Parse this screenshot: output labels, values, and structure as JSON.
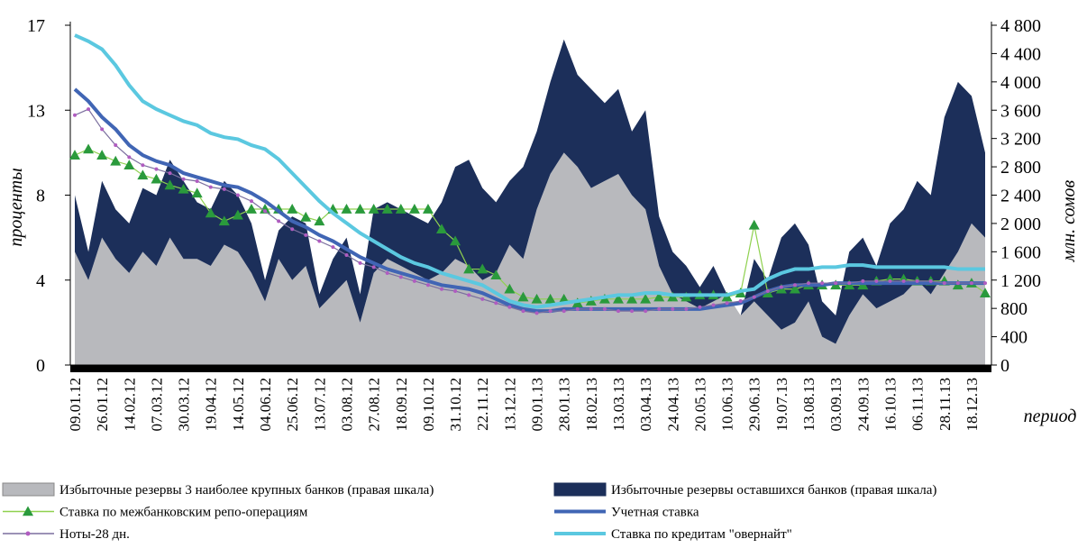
{
  "chart_data": {
    "type": "combo",
    "y_label": "проценты",
    "y2_label": "млн. сомов",
    "x_label": "период",
    "categories": [
      "09.01.12",
      null,
      "26.01.12",
      null,
      "14.02.12",
      null,
      "07.03.12",
      null,
      "30.03.12",
      null,
      "19.04.12",
      null,
      "14.05.12",
      null,
      "04.06.12",
      null,
      "25.06.12",
      null,
      "13.07.12",
      null,
      "03.08.12",
      null,
      "27.08.12",
      null,
      "18.09.12",
      null,
      "09.10.12",
      null,
      "31.10.12",
      null,
      "22.11.12",
      null,
      "13.12.12",
      null,
      "09.01.13",
      null,
      "28.01.13",
      null,
      "18.02.13",
      null,
      "13.03.13",
      null,
      "03.04.13",
      null,
      "24.04.13",
      null,
      "20.05.13",
      null,
      "10.06.13",
      null,
      "29.06.13",
      null,
      "19.07.13",
      null,
      "13.08.13",
      null,
      "03.09.13",
      null,
      "24.09.13",
      null,
      "16.10.13",
      null,
      "06.11.13",
      null,
      "28.11.13",
      null,
      "18.12.13",
      null
    ],
    "ylim": [
      0,
      17
    ],
    "yticks": [
      0,
      {
        "value": 4.25,
        "label": "4"
      },
      {
        "value": 8.5,
        "label": "8"
      },
      {
        "value": 12.75,
        "label": "13"
      },
      17
    ],
    "y2lim": [
      0,
      4800
    ],
    "y2ticks": [
      0,
      400,
      800,
      {
        "value": 1200,
        "label": "1 200"
      },
      {
        "value": 1600,
        "label": "1 600"
      },
      {
        "value": 2000,
        "label": "2 000"
      },
      {
        "value": 2400,
        "label": "2 400"
      },
      {
        "value": 2800,
        "label": "2 800"
      },
      {
        "value": 3200,
        "label": "3 200"
      },
      {
        "value": 3600,
        "label": "3 600"
      },
      {
        "value": 4000,
        "label": "4 000"
      },
      {
        "value": 4400,
        "label": "4 400"
      },
      {
        "value": 4800,
        "label": "4 800"
      }
    ],
    "series": [
      {
        "name": "Избыточные резервы 3 наиболее крупных банков (правая шкала)",
        "type": "area",
        "axis": "y2",
        "color": "#b8b9bd",
        "values": [
          1600,
          1200,
          1800,
          1500,
          1300,
          1600,
          1400,
          1800,
          1500,
          1500,
          1400,
          1700,
          1600,
          1300,
          900,
          1500,
          1200,
          1400,
          800,
          1000,
          1200,
          600,
          1300,
          1500,
          1400,
          1300,
          1200,
          1300,
          1500,
          1400,
          1200,
          1300,
          1700,
          1500,
          2200,
          2700,
          3000,
          2800,
          2500,
          2600,
          2700,
          2400,
          2200,
          1400,
          1000,
          900,
          800,
          900,
          1000,
          700,
          900,
          700,
          500,
          600,
          900,
          400,
          300,
          700,
          1000,
          800,
          900,
          1000,
          1200,
          1000,
          1300,
          1600,
          2000,
          1800
        ]
      },
      {
        "name": "Избыточные резервы оставшихся банков (правая шкала)",
        "type": "area",
        "stacked": true,
        "axis": "y2",
        "color": "#1c2f5a",
        "values": [
          800,
          400,
          800,
          700,
          700,
          900,
          1000,
          1100,
          1100,
          800,
          800,
          900,
          800,
          700,
          300,
          400,
          900,
          600,
          200,
          500,
          600,
          400,
          900,
          800,
          800,
          800,
          800,
          1000,
          1300,
          1500,
          1300,
          1000,
          900,
          1300,
          1100,
          1300,
          1600,
          1300,
          1400,
          1100,
          1200,
          900,
          1400,
          700,
          600,
          500,
          300,
          500,
          0,
          0,
          600,
          500,
          1300,
          1400,
          800,
          500,
          400,
          900,
          800,
          600,
          1100,
          1200,
          1400,
          1400,
          2200,
          2400,
          1800,
          1200
        ]
      },
      {
        "name": "Ставка по межбанковским репо-операциям",
        "type": "line",
        "marker": "triangle",
        "color": "#2a9a3c",
        "line_color": "#8fd14f",
        "values": [
          10.5,
          10.8,
          10.5,
          10.2,
          10,
          9.5,
          9.3,
          9,
          8.8,
          8.6,
          7.6,
          7.2,
          7.5,
          7.8,
          7.8,
          7.8,
          7.8,
          7.4,
          7.2,
          7.8,
          7.8,
          7.8,
          7.8,
          7.8,
          7.8,
          7.8,
          7.8,
          6.8,
          6.2,
          4.8,
          4.8,
          4.5,
          3.8,
          3.4,
          3.3,
          3.3,
          3.3,
          3.1,
          3.2,
          3.3,
          3.3,
          3.3,
          3.3,
          3.4,
          3.4,
          3.4,
          3.5,
          3.5,
          3.4,
          3.6,
          7,
          3.6,
          3.8,
          3.8,
          4,
          4,
          4,
          4,
          4,
          4.2,
          4.3,
          4.3,
          4.2,
          4.2,
          4.2,
          4,
          4.1,
          3.6
        ]
      },
      {
        "name": "Учетная ставка",
        "type": "line",
        "color": "#4065b4",
        "values": [
          13.8,
          13.2,
          12.4,
          11.8,
          11,
          10.5,
          10.2,
          10,
          9.6,
          9.4,
          9.2,
          9,
          8.9,
          8.6,
          8.2,
          7.7,
          7.2,
          6.9,
          6.5,
          6.2,
          5.8,
          5.4,
          5.1,
          4.8,
          4.6,
          4.4,
          4.2,
          4,
          3.9,
          3.8,
          3.6,
          3.3,
          3,
          2.8,
          2.7,
          2.7,
          2.8,
          2.8,
          2.8,
          2.8,
          2.8,
          2.8,
          2.8,
          2.8,
          2.8,
          2.8,
          2.8,
          2.9,
          3,
          3.1,
          3.4,
          3.7,
          3.9,
          4,
          4,
          4,
          4.1,
          4.1,
          4.1,
          4.1,
          4.1,
          4.1,
          4.1,
          4.1,
          4.1,
          4.1,
          4.1,
          4.1
        ]
      },
      {
        "name": "Ноты-28 дн.",
        "type": "line",
        "marker": "dot",
        "color": "#b05cc0",
        "line_color": "#7b6f9e",
        "values": [
          12.5,
          12.8,
          11.8,
          11,
          10.4,
          10,
          9.8,
          9.6,
          9.3,
          9.2,
          8.9,
          8.8,
          8.5,
          8.2,
          7.7,
          7.2,
          6.8,
          6.5,
          6.2,
          5.9,
          5.5,
          5.1,
          4.9,
          4.6,
          4.4,
          4.2,
          4,
          3.8,
          3.7,
          3.5,
          3.3,
          3.1,
          2.9,
          2.7,
          2.6,
          2.7,
          2.7,
          2.8,
          2.8,
          2.8,
          2.7,
          2.7,
          2.7,
          2.8,
          2.8,
          2.8,
          2.9,
          3,
          3.1,
          3.2,
          3.4,
          3.7,
          3.9,
          4,
          4.1,
          4.1,
          4.1,
          4.1,
          4.2,
          4.2,
          4.2,
          4.2,
          4.2,
          4.2,
          4.1,
          4.1,
          4.1,
          4.1
        ]
      },
      {
        "name": "Ставка по кредитам \"овернайт\"",
        "type": "line",
        "color": "#5bc8e0",
        "values": [
          16.5,
          16.2,
          15.8,
          15,
          14,
          13.2,
          12.8,
          12.5,
          12.2,
          12,
          11.6,
          11.4,
          11.3,
          11,
          10.8,
          10.3,
          9.6,
          8.9,
          8.2,
          7.6,
          7.1,
          6.6,
          6.2,
          5.8,
          5.4,
          5.1,
          4.9,
          4.6,
          4.4,
          4.2,
          4,
          3.6,
          3.2,
          3,
          2.9,
          3,
          3.1,
          3.2,
          3.3,
          3.4,
          3.5,
          3.5,
          3.6,
          3.6,
          3.5,
          3.5,
          3.5,
          3.5,
          3.5,
          3.7,
          3.8,
          4.3,
          4.6,
          4.8,
          4.8,
          4.9,
          4.9,
          5,
          5,
          4.9,
          4.9,
          4.9,
          4.9,
          4.9,
          4.9,
          4.8,
          4.8,
          4.8
        ]
      }
    ]
  }
}
